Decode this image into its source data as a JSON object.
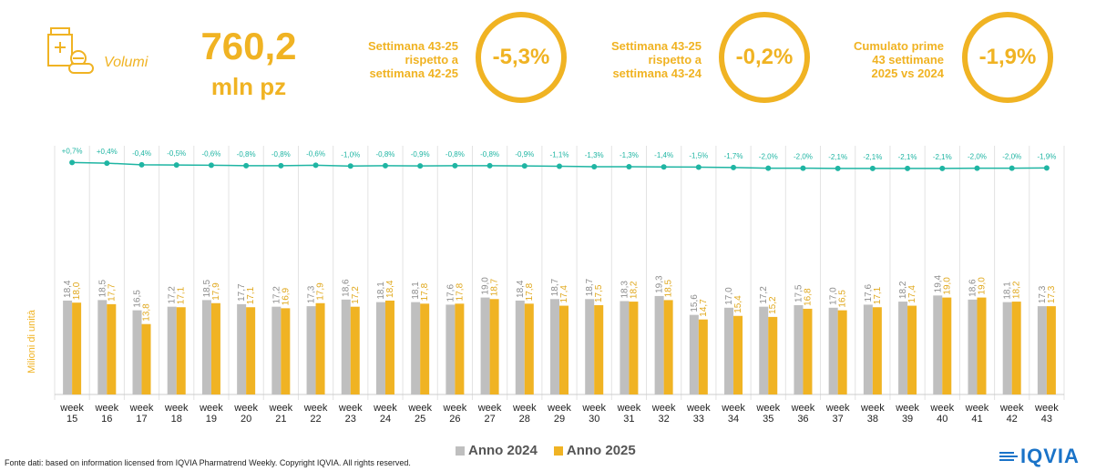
{
  "header": {
    "volume_label": "Volumi",
    "volume_value": "760,2",
    "volume_unit": "mln pz",
    "metrics": [
      {
        "label_lines": [
          "Settimana 43-25",
          "rispetto a",
          "settimana 42-25"
        ],
        "value": "-5,3%"
      },
      {
        "label_lines": [
          "Settimana 43-25",
          "rispetto a",
          "settimana 43-24"
        ],
        "value": "-0,2%"
      },
      {
        "label_lines": [
          "Cumulato prime",
          "43 settimane",
          "2025 vs 2024"
        ],
        "value": "-1,9%"
      }
    ]
  },
  "colors": {
    "accent": "#f0b323",
    "series_2024": "#bfbfbf",
    "series_2025": "#f0b323",
    "line": "#1fb5a3"
  },
  "chart_data": {
    "type": "bar",
    "ylabel": "Milioni di unità",
    "categories": [
      "week 15",
      "week 16",
      "week 17",
      "week 18",
      "week 19",
      "week 20",
      "week 21",
      "week 22",
      "week 23",
      "week 24",
      "week 25",
      "week 26",
      "week 27",
      "week 28",
      "week 29",
      "week 30",
      "week 31",
      "week 32",
      "week 33",
      "week 34",
      "week 35",
      "week 36",
      "week 37",
      "week 38",
      "week 39",
      "week 40",
      "week 41",
      "week 42",
      "week 43"
    ],
    "series": [
      {
        "name": "Anno 2024",
        "values": [
          18.4,
          18.5,
          16.5,
          17.2,
          18.5,
          17.7,
          17.2,
          17.3,
          18.6,
          18.1,
          18.1,
          17.6,
          19.0,
          18.4,
          18.7,
          18.7,
          18.3,
          19.3,
          15.6,
          17.0,
          17.2,
          17.5,
          17.0,
          17.6,
          18.2,
          19.4,
          18.6,
          18.1,
          17.3
        ]
      },
      {
        "name": "Anno 2025",
        "values": [
          18.0,
          17.7,
          13.8,
          17.1,
          17.9,
          17.1,
          16.9,
          17.9,
          17.2,
          18.4,
          17.8,
          17.8,
          18.7,
          17.8,
          17.4,
          17.5,
          18.2,
          18.5,
          14.7,
          15.4,
          15.2,
          16.8,
          16.5,
          17.1,
          17.4,
          19.0,
          19.0,
          18.2,
          17.3
        ]
      }
    ],
    "bar_labels_2024": [
      "18,4",
      "18,5",
      "16,5",
      "17,2",
      "18,5",
      "17,7",
      "17,2",
      "17,3",
      "18,6",
      "18,1",
      "18,1",
      "17,6",
      "19,0",
      "18,4",
      "18,7",
      "18,7",
      "18,3",
      "19,3",
      "15,6",
      "17,0",
      "17,2",
      "17,5",
      "17,0",
      "17,6",
      "18,2",
      "19,4",
      "18,6",
      "18,1",
      "17,3"
    ],
    "bar_labels_2025": [
      "18,0",
      "17,7",
      "13,8",
      "17,1",
      "17,9",
      "17,1",
      "16,9",
      "17,9",
      "17,2",
      "18,4",
      "17,8",
      "17,8",
      "18,7",
      "17,8",
      "17,4",
      "17,5",
      "18,2",
      "18,5",
      "14,7",
      "15,4",
      "15,2",
      "16,8",
      "16,5",
      "17,1",
      "17,4",
      "19,0",
      "19,0",
      "18,2",
      "17,3"
    ],
    "cumulative_change": {
      "values": [
        0.7,
        0.4,
        -0.4,
        -0.5,
        -0.6,
        -0.8,
        -0.8,
        -0.6,
        -1.0,
        -0.8,
        -0.9,
        -0.8,
        -0.8,
        -0.9,
        -1.1,
        -1.3,
        -1.3,
        -1.4,
        -1.5,
        -1.7,
        -2.0,
        -2.0,
        -2.1,
        -2.1,
        -2.1,
        -2.1,
        -2.0,
        -2.0,
        -1.9
      ],
      "labels": [
        "+0,7%",
        "+0,4%",
        "-0,4%",
        "-0,5%",
        "-0,6%",
        "-0,8%",
        "-0,8%",
        "-0,6%",
        "-1,0%",
        "-0,8%",
        "-0,9%",
        "-0,8%",
        "-0,8%",
        "-0,9%",
        "-1,1%",
        "-1,3%",
        "-1,3%",
        "-1,4%",
        "-1,5%",
        "-1,7%",
        "-2,0%",
        "-2,0%",
        "-2,1%",
        "-2,1%",
        "-2,1%",
        "-2,1%",
        "-2,0%",
        "-2,0%",
        "-1,9%"
      ]
    },
    "legend_position": "bottom-center",
    "grid": false
  },
  "legend": {
    "item_2024": "Anno 2024",
    "item_2025": "Anno 2025"
  },
  "footer": {
    "source": "Fonte dati: based on information licensed from IQVIA Pharmatrend Weekly. Copyright IQVIA. All rights reserved."
  },
  "logo": {
    "text": "IQVIA"
  }
}
